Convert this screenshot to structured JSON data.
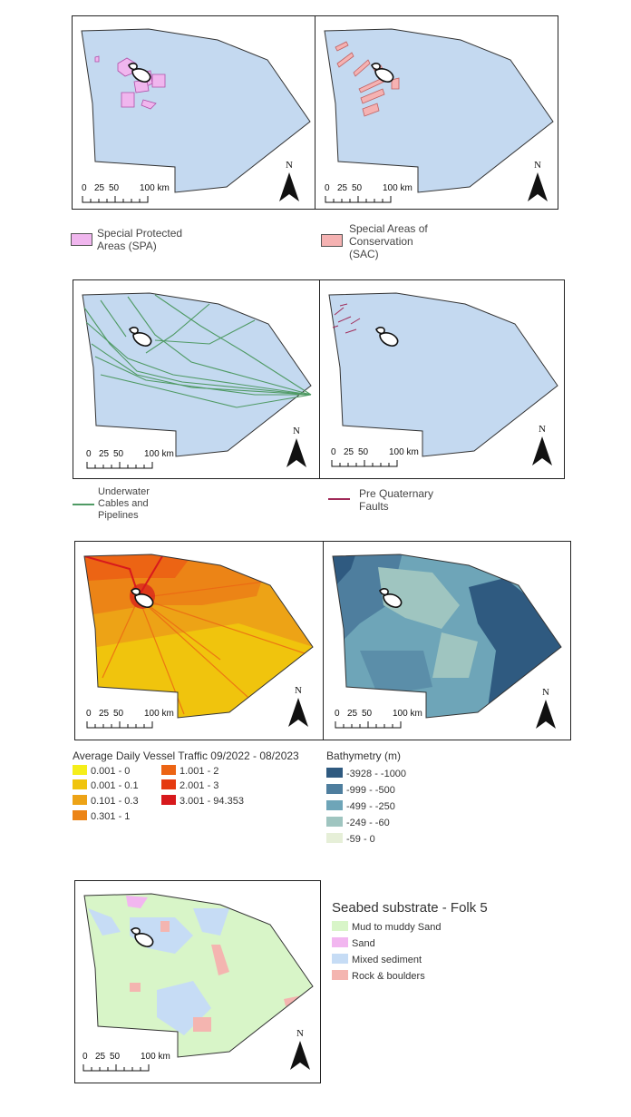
{
  "scale_bar": {
    "label_0": "0",
    "label_25": "25",
    "label_50": "50",
    "label_100": "100 km"
  },
  "north_label": "N",
  "colors": {
    "sea": "#c4d9f0",
    "spa": "#f0b6ee",
    "sac": "#f5b2b2",
    "cables": "#4f9a64",
    "faults": "#a02a58",
    "land": "#ffffff"
  },
  "legends": {
    "spa": {
      "line1": "Special Protected",
      "line2": "Areas (SPA)"
    },
    "sac": {
      "line1": "Special Areas of",
      "line2": "Conservation",
      "line3": "(SAC)"
    },
    "cables": {
      "line1": "Underwater",
      "line2": "Cables and",
      "line3": "Pipelines"
    },
    "faults": {
      "line1": "Pre Quaternary",
      "line2": "Faults"
    },
    "vessel": {
      "title": "Average Daily Vessel Traffic 09/2022 - 08/2023",
      "classes": [
        {
          "label": "0.001 - 0",
          "color": "#f5ee1a"
        },
        {
          "label": "0.001 - 0.1",
          "color": "#f0c40d"
        },
        {
          "label": "0.101 - 0.3",
          "color": "#eda316"
        },
        {
          "label": "0.301 - 1",
          "color": "#ec8416"
        },
        {
          "label": "1.001 - 2",
          "color": "#ec6414"
        },
        {
          "label": "2.001 - 3",
          "color": "#e53a10"
        },
        {
          "label": "3.001 - 94.353",
          "color": "#d7191c"
        }
      ]
    },
    "bathymetry": {
      "title": "Bathymetry (m)",
      "classes": [
        {
          "label": "-3928 - -1000",
          "color": "#2f5a80"
        },
        {
          "label": "-999 - -500",
          "color": "#4e7e9e"
        },
        {
          "label": "-499 - -250",
          "color": "#6ea5b8"
        },
        {
          "label": "-249 - -60",
          "color": "#9fc5c0"
        },
        {
          "label": "-59 - 0",
          "color": "#e6efd8"
        }
      ]
    },
    "seabed": {
      "title": "Seabed substrate - Folk 5",
      "classes": [
        {
          "label": "Mud to muddy Sand",
          "color": "#d8f5c8"
        },
        {
          "label": "Sand",
          "color": "#f2b6f0"
        },
        {
          "label": "Mixed sediment",
          "color": "#c6dcf5"
        },
        {
          "label": "Rock & boulders",
          "color": "#f4b5b0"
        }
      ]
    }
  }
}
